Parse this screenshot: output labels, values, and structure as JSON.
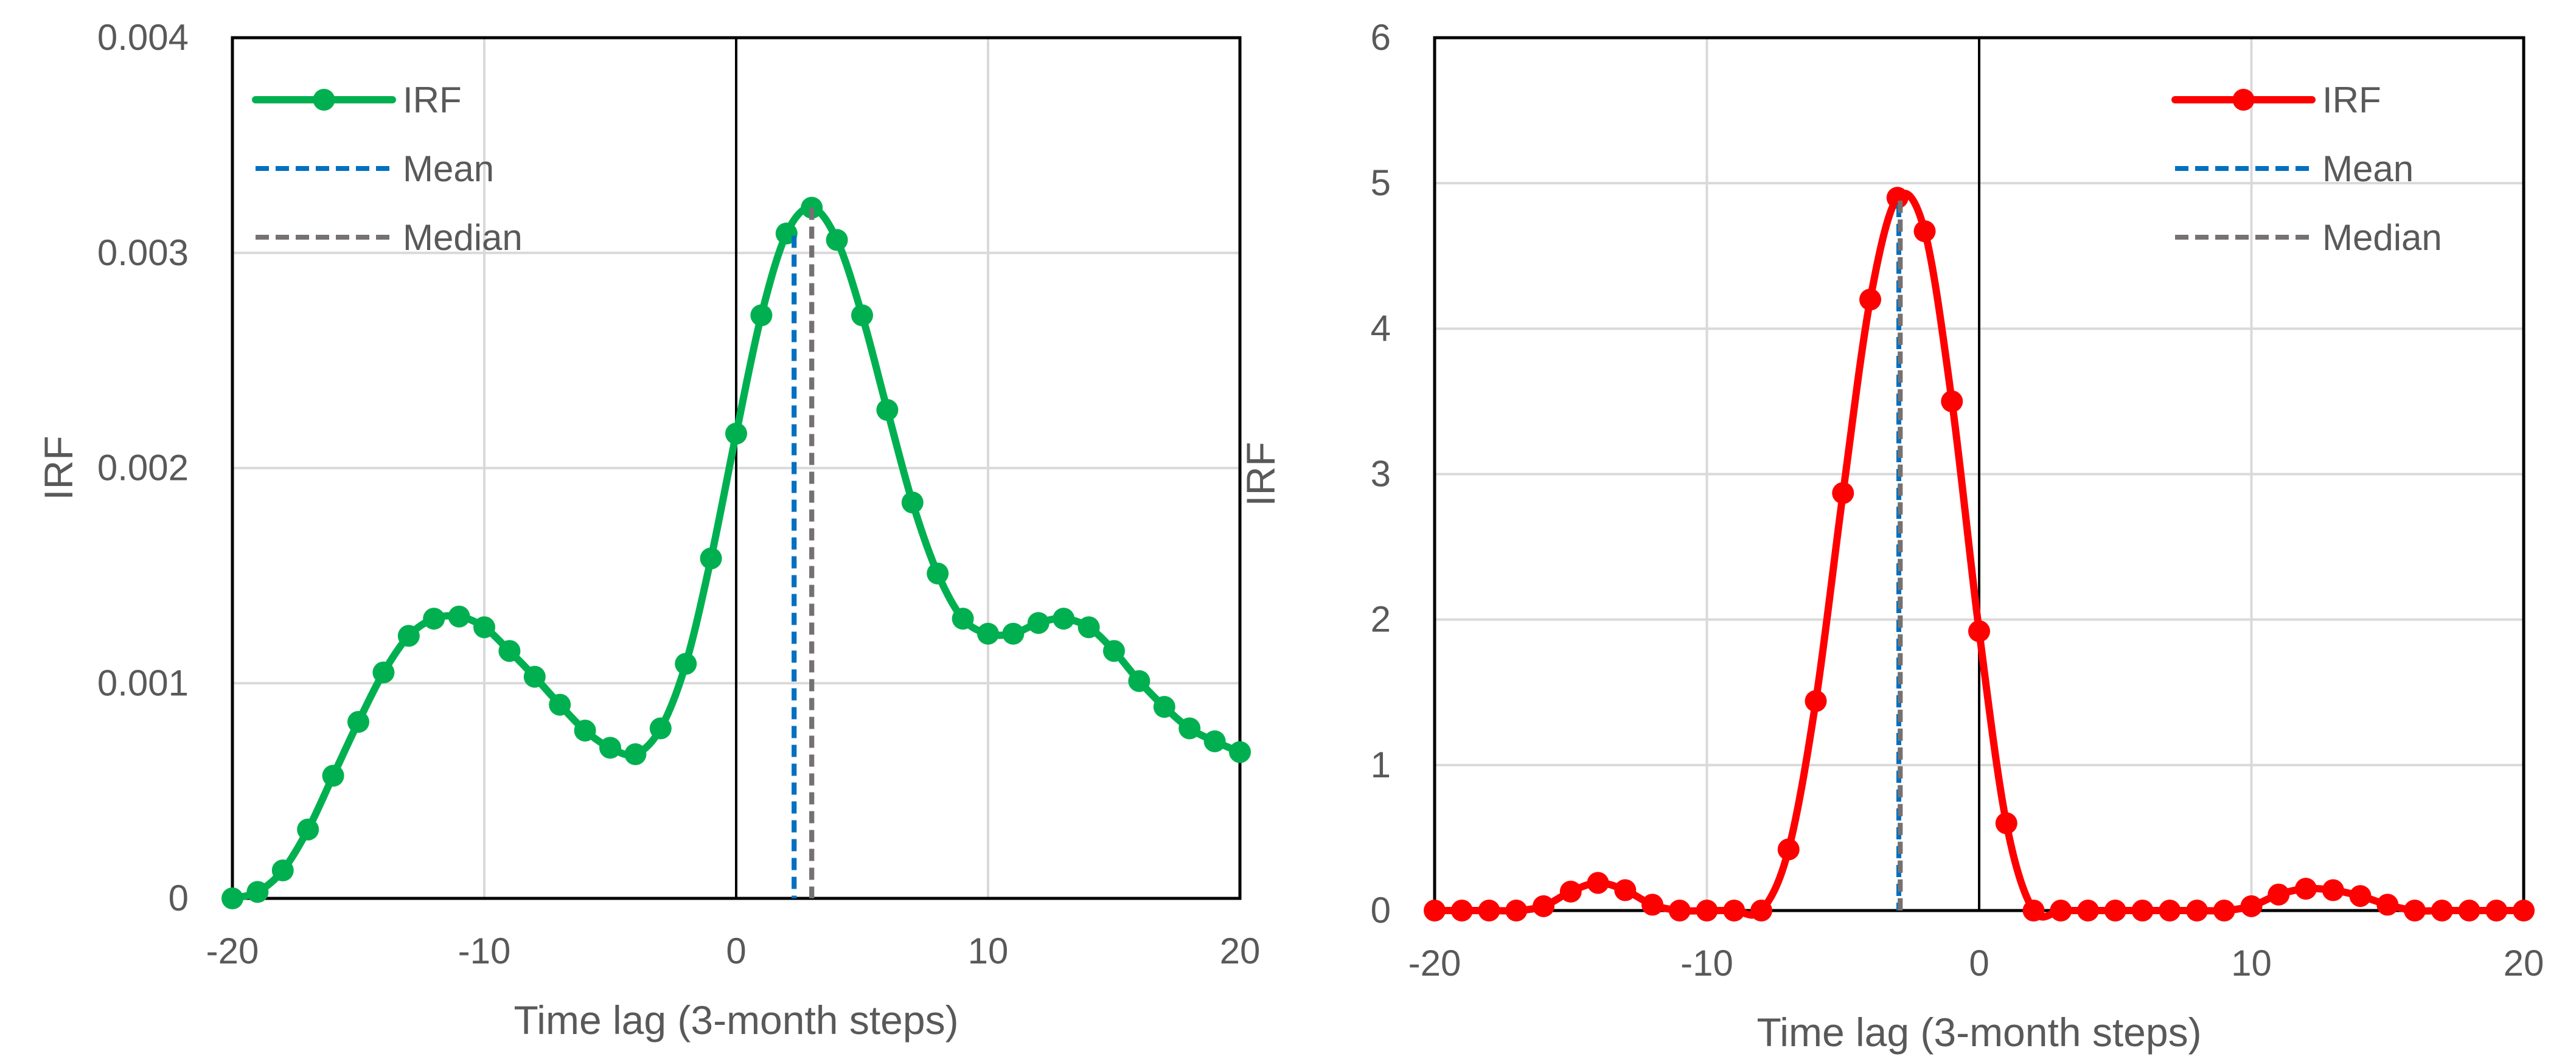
{
  "chart_data": [
    {
      "type": "line",
      "xlabel": "Time lag (3-month steps)",
      "ylabel": "IRF",
      "xlim": [
        -20,
        20
      ],
      "ylim": [
        0,
        0.004
      ],
      "x_ticks": [
        -20,
        -10,
        0,
        10,
        20
      ],
      "x_tick_labels": [
        "-20",
        "-10",
        "0",
        "10",
        "20"
      ],
      "y_ticks": [
        0,
        0.001,
        0.002,
        0.003,
        0.004
      ],
      "y_tick_labels": [
        "0",
        "0.001",
        "0.002",
        "0.003",
        "0.004"
      ],
      "grid": true,
      "legend_position": "top-left",
      "zero_line_x": 0,
      "series": [
        {
          "name": "IRF",
          "color": "#00b050",
          "style": "solid-markers",
          "x": [
            -20,
            -19,
            -18,
            -17,
            -16,
            -15,
            -14,
            -13,
            -12,
            -11,
            -10,
            -9,
            -8,
            -7,
            -6,
            -5,
            -4,
            -3,
            -2,
            -1,
            0,
            1,
            2,
            3,
            4,
            5,
            6,
            7,
            8,
            9,
            10,
            11,
            12,
            13,
            14,
            15,
            16,
            17,
            18,
            19,
            20
          ],
          "y": [
            0,
            3e-05,
            0.00013,
            0.00032,
            0.00057,
            0.00082,
            0.00105,
            0.00122,
            0.0013,
            0.00131,
            0.00126,
            0.00115,
            0.00103,
            0.0009,
            0.00078,
            0.0007,
            0.00067,
            0.00079,
            0.00109,
            0.00158,
            0.00216,
            0.00271,
            0.00309,
            0.00321,
            0.00306,
            0.00271,
            0.00227,
            0.00184,
            0.00151,
            0.0013,
            0.00123,
            0.00123,
            0.00128,
            0.0013,
            0.00126,
            0.00115,
            0.00101,
            0.00089,
            0.00079,
            0.00073,
            0.00068
          ]
        },
        {
          "name": "Mean",
          "color": "#0070c0",
          "style": "dashed-vertical",
          "x": 2.3,
          "y": 0.00308
        },
        {
          "name": "Median",
          "color": "#767171",
          "style": "dashed-vertical",
          "x": 3.0,
          "y": 0.00321
        }
      ]
    },
    {
      "type": "line",
      "xlabel": "Time lag (3-month steps)",
      "ylabel": "IRF",
      "xlim": [
        -20,
        20
      ],
      "ylim": [
        0,
        6
      ],
      "x_ticks": [
        -20,
        -10,
        0,
        10,
        20
      ],
      "x_tick_labels": [
        "-20",
        "-10",
        "0",
        "10",
        "20"
      ],
      "y_ticks": [
        0,
        1,
        2,
        3,
        4,
        5,
        6
      ],
      "y_tick_labels": [
        "0",
        "1",
        "2",
        "3",
        "4",
        "5",
        "6"
      ],
      "grid": true,
      "legend_position": "top-right",
      "zero_line_x": 0,
      "series": [
        {
          "name": "IRF",
          "color": "#ff0000",
          "style": "solid-markers",
          "x": [
            -20,
            -19,
            -18,
            -17,
            -16,
            -15,
            -14,
            -13,
            -12,
            -11,
            -10,
            -9,
            -8,
            -7,
            -6,
            -5,
            -4,
            -3,
            -2,
            -1,
            0,
            1,
            2,
            3,
            4,
            5,
            6,
            7,
            8,
            9,
            10,
            11,
            12,
            13,
            14,
            15,
            16,
            17,
            18,
            19,
            20
          ],
          "y": [
            0,
            0,
            0,
            0,
            0.03,
            0.13,
            0.19,
            0.14,
            0.04,
            0,
            0,
            0,
            0,
            0.42,
            1.44,
            2.87,
            4.2,
            4.9,
            4.67,
            3.5,
            1.92,
            0.6,
            0,
            0,
            0,
            0,
            0,
            0,
            0,
            0,
            0.03,
            0.11,
            0.15,
            0.14,
            0.1,
            0.04,
            0,
            0,
            0,
            0,
            0
          ]
        },
        {
          "name": "Mean",
          "color": "#0070c0",
          "style": "dashed-vertical",
          "x": -2.95,
          "y": 4.85
        },
        {
          "name": "Median",
          "color": "#767171",
          "style": "dashed-vertical",
          "x": -2.9,
          "y": 4.88
        }
      ]
    }
  ]
}
